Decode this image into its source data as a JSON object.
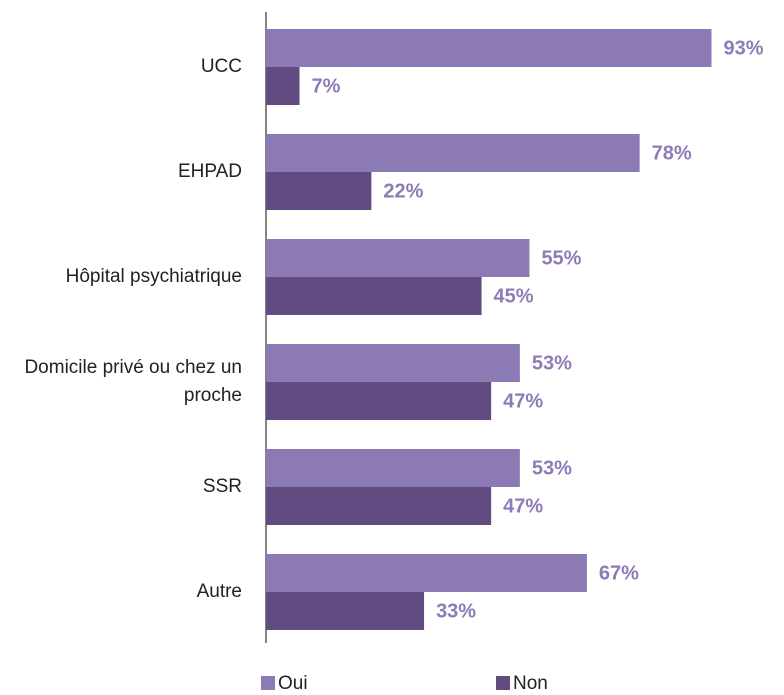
{
  "chart_data": {
    "type": "bar",
    "orientation": "horizontal",
    "categories": [
      "UCC",
      "EHPAD",
      "Hôpital psychiatrique",
      "Domicile privé ou chez un proche",
      "SSR",
      "Autre"
    ],
    "series": [
      {
        "name": "Oui",
        "color": "#8b7ab3",
        "values": [
          93,
          78,
          55,
          53,
          53,
          67
        ],
        "value_labels": [
          "93%",
          "78%",
          "55%",
          "53%",
          "53%",
          "67%"
        ]
      },
      {
        "name": "Non",
        "color": "#614b80",
        "values": [
          7,
          22,
          45,
          47,
          47,
          33
        ],
        "value_labels": [
          "7%",
          "22%",
          "45%",
          "47%",
          "47%",
          "33%"
        ]
      }
    ],
    "legend": "bottom"
  }
}
